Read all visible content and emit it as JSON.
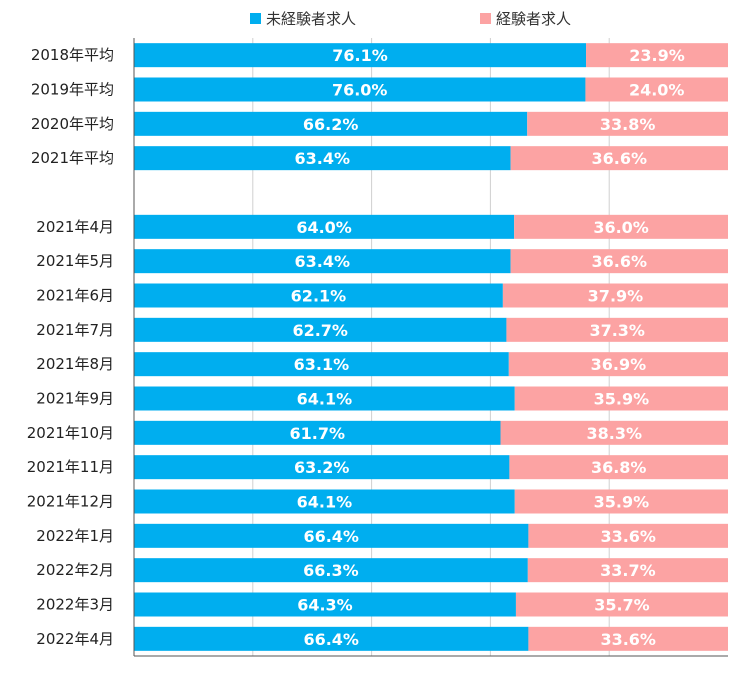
{
  "chart_data": {
    "type": "bar",
    "orientation": "horizontal",
    "stacked": true,
    "percent_stacked": true,
    "categories": [
      "2018年平均",
      "2019年平均",
      "2020年平均",
      "2021年平均",
      "",
      "2021年4月",
      "2021年5月",
      "2021年6月",
      "2021年7月",
      "2021年8月",
      "2021年9月",
      "2021年10月",
      "2021年11月",
      "2021年12月",
      "2022年1月",
      "2022年2月",
      "2022年3月",
      "2022年4月"
    ],
    "series": [
      {
        "name": "未経験者求人",
        "color": "#00AEEF",
        "values": [
          76.1,
          76.0,
          66.2,
          63.4,
          null,
          64.0,
          63.4,
          62.1,
          62.7,
          63.1,
          64.1,
          61.7,
          63.2,
          64.1,
          66.4,
          66.3,
          64.3,
          66.4
        ],
        "labels": [
          "76.1%",
          "76.0%",
          "66.2%",
          "63.4%",
          "",
          "64.0%",
          "63.4%",
          "62.1%",
          "62.7%",
          "63.1%",
          "64.1%",
          "61.7%",
          "63.2%",
          "64.1%",
          "66.4%",
          "66.3%",
          "64.3%",
          "66.4%"
        ]
      },
      {
        "name": "経験者求人",
        "color": "#FCA3A3",
        "values": [
          23.9,
          24.0,
          33.8,
          36.6,
          null,
          36.0,
          36.6,
          37.9,
          37.3,
          36.9,
          35.9,
          38.3,
          36.8,
          35.9,
          33.6,
          33.7,
          35.7,
          33.6
        ],
        "labels": [
          "23.9%",
          "24.0%",
          "33.8%",
          "36.6%",
          "",
          "36.0%",
          "36.6%",
          "37.9%",
          "37.3%",
          "36.9%",
          "35.9%",
          "38.3%",
          "36.8%",
          "35.9%",
          "33.6%",
          "33.7%",
          "35.7%",
          "33.6%"
        ]
      }
    ],
    "xlim": [
      0,
      100
    ],
    "grid": true,
    "legend": "top-center"
  }
}
